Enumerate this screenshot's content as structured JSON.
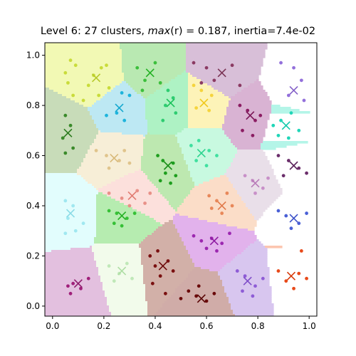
{
  "chart_data": {
    "type": "scatter",
    "title": "Level 6: 27 clusters, max(r) = 0.187, inertia=7.4e-02",
    "title_parts": {
      "prefix": "Level 6: 27 clusters, ",
      "func": "max",
      "arg": "(r)",
      "eq": " = 0.187, inertia=7.4e-02"
    },
    "xlim": [
      -0.03,
      1.03
    ],
    "ylim": [
      -0.04,
      1.05
    ],
    "x_ticks": [
      "0.0",
      "0.2",
      "0.4",
      "0.6",
      "0.8",
      "1.0"
    ],
    "y_ticks": [
      "0.0",
      "0.2",
      "0.4",
      "0.6",
      "0.8",
      "1.0"
    ],
    "x_tick_values": [
      0,
      0.2,
      0.4,
      0.6,
      0.8,
      1.0
    ],
    "y_tick_values": [
      0,
      0.2,
      0.4,
      0.6,
      0.8,
      1.0
    ],
    "grid": false,
    "legend": "none",
    "clusters": [
      {
        "center": [
          0.17,
          0.91
        ],
        "region": "#f2f9b4",
        "point": "#c9dc3a",
        "marker": "#b6c92a",
        "points": [
          [
            0.07,
            0.98
          ],
          [
            0.09,
            0.96
          ],
          [
            0.06,
            0.89
          ],
          [
            0.14,
            0.88
          ],
          [
            0.16,
            0.92
          ],
          [
            0.19,
            0.95
          ],
          [
            0.21,
            0.96
          ],
          [
            0.08,
            0.84
          ],
          [
            0.12,
            0.82
          ],
          [
            0.22,
            0.87
          ],
          [
            0.05,
            0.93
          ],
          [
            0.18,
            0.84
          ]
        ]
      },
      {
        "center": [
          0.38,
          0.93
        ],
        "region": "#b9e9b2",
        "point": "#3cbf3c",
        "marker": "#22b022",
        "points": [
          [
            0.33,
            0.95
          ],
          [
            0.36,
            0.9
          ],
          [
            0.4,
            0.97
          ],
          [
            0.42,
            0.89
          ],
          [
            0.35,
            0.86
          ]
        ]
      },
      {
        "center": [
          0.66,
          0.93
        ],
        "region": "#d8bfd8",
        "point": "#8b3a62",
        "marker": "#7a3455",
        "points": [
          [
            0.55,
            0.97
          ],
          [
            0.6,
            0.95
          ],
          [
            0.63,
            0.9
          ],
          [
            0.7,
            0.96
          ],
          [
            0.73,
            0.88
          ],
          [
            0.58,
            0.89
          ]
        ]
      },
      {
        "center": [
          0.94,
          0.86
        ],
        "region": "#dcd0ea",
        "point": "#9370db",
        "marker": "#8460c8",
        "points": [
          [
            0.89,
            0.97
          ],
          [
            0.94,
            0.95
          ],
          [
            0.97,
            0.9
          ],
          [
            0.92,
            0.84
          ],
          [
            0.98,
            0.82
          ]
        ]
      },
      {
        "center": [
          0.26,
          0.79
        ],
        "region": "#bde8f3",
        "point": "#1eb4dc",
        "marker": "#14a8cf",
        "points": [
          [
            0.27,
            0.85
          ],
          [
            0.3,
            0.84
          ],
          [
            0.25,
            0.77
          ],
          [
            0.28,
            0.74
          ],
          [
            0.21,
            0.76
          ]
        ]
      },
      {
        "center": [
          0.46,
          0.81
        ],
        "region": "#aef2c4",
        "point": "#2ecc71",
        "marker": "#19c25a",
        "points": [
          [
            0.45,
            0.86
          ],
          [
            0.47,
            0.83
          ],
          [
            0.44,
            0.8
          ],
          [
            0.48,
            0.77
          ],
          [
            0.43,
            0.74
          ]
        ]
      },
      {
        "center": [
          0.59,
          0.81
        ],
        "region": "#fdf3b8",
        "point": "#f5d43d",
        "marker": "#f0c81a",
        "points": [
          [
            0.55,
            0.88
          ],
          [
            0.58,
            0.86
          ],
          [
            0.62,
            0.84
          ],
          [
            0.56,
            0.79
          ],
          [
            0.61,
            0.78
          ]
        ]
      },
      {
        "center": [
          0.77,
          0.76
        ],
        "region": "#d9b3d3",
        "point": "#8b1c62",
        "marker": "#7a1556",
        "points": [
          [
            0.73,
            0.8
          ],
          [
            0.76,
            0.78
          ],
          [
            0.79,
            0.74
          ],
          [
            0.74,
            0.7
          ],
          [
            0.78,
            0.68
          ],
          [
            0.81,
            0.76
          ]
        ]
      },
      {
        "center": [
          0.06,
          0.69
        ],
        "region": "#c8dcb9",
        "point": "#3a8a2a",
        "marker": "#2b7a1e",
        "points": [
          [
            0.05,
            0.76
          ],
          [
            0.07,
            0.72
          ],
          [
            0.04,
            0.67
          ],
          [
            0.08,
            0.63
          ],
          [
            0.05,
            0.61
          ]
        ]
      },
      {
        "center": [
          0.91,
          0.72
        ],
        "region": "#b4f5e8",
        "point": "#20d6b8",
        "marker": "#12c9aa",
        "points": [
          [
            0.86,
            0.72
          ],
          [
            0.89,
            0.74
          ],
          [
            0.93,
            0.77
          ],
          [
            0.96,
            0.7
          ],
          [
            0.92,
            0.67
          ],
          [
            0.88,
            0.68
          ]
        ]
      },
      {
        "center": [
          0.24,
          0.59
        ],
        "region": "#f7eed7",
        "point": "#e0c48c",
        "marker": "#d8b878",
        "points": [
          [
            0.17,
            0.62
          ],
          [
            0.21,
            0.6
          ],
          [
            0.26,
            0.58
          ],
          [
            0.28,
            0.62
          ],
          [
            0.3,
            0.57
          ],
          [
            0.22,
            0.55
          ]
        ]
      },
      {
        "center": [
          0.58,
          0.61
        ],
        "region": "#c8f9e0",
        "point": "#40e0a0",
        "marker": "#2bd48f",
        "points": [
          [
            0.54,
            0.64
          ],
          [
            0.57,
            0.66
          ],
          [
            0.61,
            0.62
          ],
          [
            0.56,
            0.58
          ],
          [
            0.6,
            0.56
          ],
          [
            0.64,
            0.6
          ]
        ]
      },
      {
        "center": [
          0.45,
          0.56
        ],
        "region": "#bde8b0",
        "point": "#1e9e1e",
        "marker": "#198e19",
        "points": [
          [
            0.41,
            0.6
          ],
          [
            0.43,
            0.58
          ],
          [
            0.47,
            0.57
          ],
          [
            0.44,
            0.53
          ],
          [
            0.48,
            0.52
          ],
          [
            0.42,
            0.5
          ],
          [
            0.46,
            0.49
          ]
        ]
      },
      {
        "center": [
          0.94,
          0.56
        ],
        "region": "#d4c3da",
        "point": "#6b2e6b",
        "marker": "#5c245c",
        "points": [
          [
            0.88,
            0.6
          ],
          [
            0.92,
            0.58
          ],
          [
            0.96,
            0.55
          ],
          [
            0.99,
            0.53
          ],
          [
            0.9,
            0.52
          ]
        ]
      },
      {
        "center": [
          0.79,
          0.49
        ],
        "region": "#e9dfe9",
        "point": "#c890c8",
        "marker": "#b87ab8",
        "points": [
          [
            0.75,
            0.52
          ],
          [
            0.78,
            0.5
          ],
          [
            0.82,
            0.47
          ],
          [
            0.79,
            0.45
          ],
          [
            0.84,
            0.51
          ]
        ]
      },
      {
        "center": [
          0.07,
          0.37
        ],
        "region": "#e2fdfd",
        "point": "#a0e8f0",
        "marker": "#8adbe6",
        "points": [
          [
            0.05,
            0.42
          ],
          [
            0.08,
            0.4
          ],
          [
            0.06,
            0.35
          ],
          [
            0.09,
            0.3
          ],
          [
            0.05,
            0.29
          ],
          [
            0.12,
            0.33
          ]
        ]
      },
      {
        "center": [
          0.31,
          0.44
        ],
        "region": "#fce0dc",
        "point": "#e89088",
        "marker": "#e07a70",
        "points": [
          [
            0.22,
            0.45
          ],
          [
            0.27,
            0.43
          ],
          [
            0.33,
            0.46
          ],
          [
            0.36,
            0.41
          ],
          [
            0.38,
            0.45
          ],
          [
            0.3,
            0.4
          ]
        ]
      },
      {
        "center": [
          0.66,
          0.4
        ],
        "region": "#fbddc8",
        "point": "#e8885a",
        "marker": "#e07848",
        "points": [
          [
            0.61,
            0.44
          ],
          [
            0.64,
            0.42
          ],
          [
            0.68,
            0.45
          ],
          [
            0.7,
            0.4
          ],
          [
            0.66,
            0.37
          ],
          [
            0.62,
            0.39
          ]
        ]
      },
      {
        "center": [
          0.94,
          0.35
        ],
        "region": "#c4c8ee",
        "point": "#4a60d6",
        "marker": "#3b50c8",
        "points": [
          [
            0.88,
            0.38
          ],
          [
            0.91,
            0.36
          ],
          [
            0.96,
            0.33
          ],
          [
            0.99,
            0.37
          ],
          [
            0.93,
            0.31
          ]
        ]
      },
      {
        "center": [
          0.27,
          0.36
        ],
        "region": "#b6ecb0",
        "point": "#36c036",
        "marker": "#22b022",
        "points": [
          [
            0.22,
            0.38
          ],
          [
            0.25,
            0.37
          ],
          [
            0.29,
            0.35
          ],
          [
            0.27,
            0.32
          ],
          [
            0.32,
            0.37
          ],
          [
            0.24,
            0.33
          ]
        ]
      },
      {
        "center": [
          0.63,
          0.26
        ],
        "region": "#e2b2ec",
        "point": "#9c27b0",
        "marker": "#8e1ca2",
        "points": [
          [
            0.55,
            0.28
          ],
          [
            0.58,
            0.26
          ],
          [
            0.62,
            0.27
          ],
          [
            0.66,
            0.25
          ],
          [
            0.69,
            0.29
          ],
          [
            0.64,
            0.22
          ],
          [
            0.6,
            0.23
          ]
        ]
      },
      {
        "center": [
          0.43,
          0.16
        ],
        "region": "#d2b0a8",
        "point": "#7a1010",
        "marker": "#6b0808",
        "points": [
          [
            0.38,
            0.2
          ],
          [
            0.41,
            0.22
          ],
          [
            0.4,
            0.16
          ],
          [
            0.45,
            0.18
          ],
          [
            0.42,
            0.12
          ],
          [
            0.47,
            0.14
          ],
          [
            0.39,
            0.09
          ],
          [
            0.44,
            0.05
          ]
        ]
      },
      {
        "center": [
          0.27,
          0.14
        ],
        "region": "#f2fbeb",
        "point": "#c0e8b8",
        "marker": "#aedda4",
        "points": [
          [
            0.22,
            0.16
          ],
          [
            0.26,
            0.13
          ],
          [
            0.29,
            0.17
          ],
          [
            0.24,
            0.1
          ],
          [
            0.31,
            0.11
          ]
        ]
      },
      {
        "center": [
          0.1,
          0.09
        ],
        "region": "#e3c0df",
        "point": "#a0207a",
        "marker": "#8e1a6b",
        "points": [
          [
            0.06,
            0.08
          ],
          [
            0.08,
            0.09
          ],
          [
            0.11,
            0.07
          ],
          [
            0.14,
            0.11
          ],
          [
            0.07,
            0.05
          ]
        ]
      },
      {
        "center": [
          0.76,
          0.1
        ],
        "region": "#d8c6ef",
        "point": "#8e5cd6",
        "marker": "#7e4cc8",
        "points": [
          [
            0.72,
            0.14
          ],
          [
            0.75,
            0.12
          ],
          [
            0.79,
            0.08
          ],
          [
            0.82,
            0.11
          ],
          [
            0.74,
            0.06
          ],
          [
            0.78,
            0.04
          ]
        ]
      },
      {
        "center": [
          0.93,
          0.12
        ],
        "region": "#fcc6b0",
        "point": "#e84a1a",
        "marker": "#d83a0a",
        "points": [
          [
            0.88,
            0.14
          ],
          [
            0.91,
            0.1
          ],
          [
            0.96,
            0.13
          ],
          [
            0.99,
            0.11
          ],
          [
            0.94,
            0.07
          ],
          [
            0.97,
            0.22
          ]
        ]
      },
      {
        "center": [
          0.58,
          0.03
        ],
        "region": "#d0aca8",
        "point": "#6a0a0a",
        "marker": "#5a0505",
        "points": [
          [
            0.53,
            0.06
          ],
          [
            0.56,
            0.04
          ],
          [
            0.6,
            0.02
          ],
          [
            0.63,
            0.05
          ],
          [
            0.57,
            0.08
          ],
          [
            0.5,
            0.03
          ]
        ]
      }
    ]
  }
}
